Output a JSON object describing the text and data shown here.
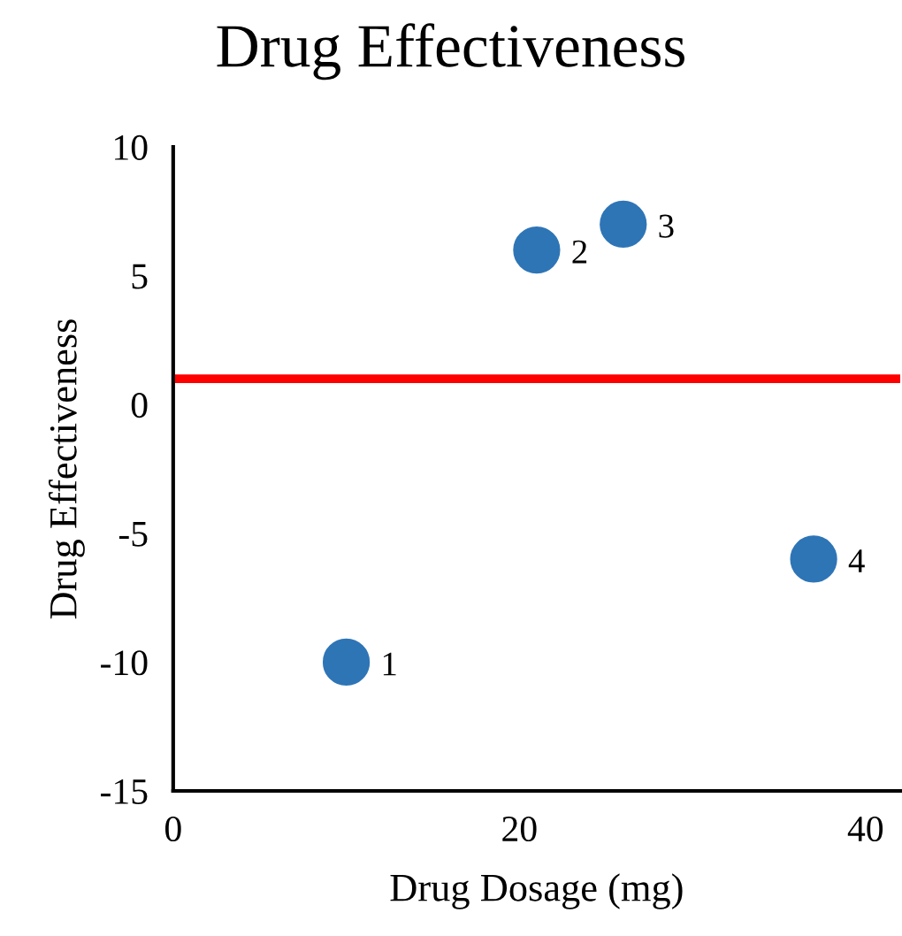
{
  "chart_data": {
    "type": "scatter",
    "title": "Drug Effectiveness",
    "xlabel": "Drug Dosage (mg)",
    "ylabel": "Drug Effectiveness",
    "x": [
      10,
      21,
      26,
      37
    ],
    "series": [
      {
        "color": "#2e75b6",
        "values": [
          -10,
          6,
          7,
          -6
        ]
      }
    ],
    "marker": "circle",
    "xlim": [
      0,
      42
    ],
    "xticks": [
      0,
      20,
      40
    ],
    "ylim": [
      -15,
      10
    ],
    "yticks": [
      -15,
      -10,
      -5,
      0,
      5,
      10
    ],
    "grid": false,
    "legend": false,
    "ref_lines": [
      {
        "axis": "y",
        "value": 1,
        "color": "#ff0000",
        "line_style": "solid"
      }
    ],
    "annotations": [
      {
        "text": "1",
        "x": 10,
        "y": -10
      },
      {
        "text": "2",
        "x": 21,
        "y": 6
      },
      {
        "text": "3",
        "x": 26,
        "y": 7
      },
      {
        "text": "4",
        "x": 37,
        "y": -6
      }
    ]
  }
}
